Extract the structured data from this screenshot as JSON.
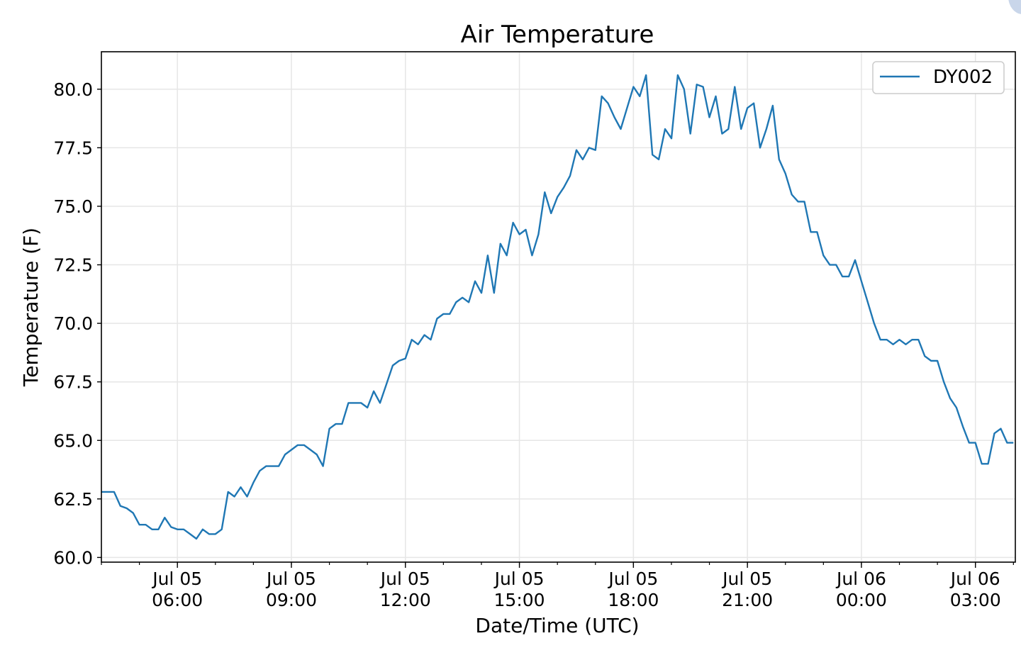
{
  "chart_data": {
    "type": "line",
    "title": "Air Temperature",
    "xlabel": "Date/Time (UTC)",
    "ylabel": "Temperature (F)",
    "x_start_hour": 4,
    "x_step_minutes": 10,
    "xlim_hours": [
      4,
      28.05
    ],
    "ylim": [
      59.8,
      81.6
    ],
    "grid": true,
    "legend_position": "top-right",
    "series": [
      {
        "name": "DY002",
        "color": "#1f77b4",
        "values": [
          62.8,
          62.8,
          62.8,
          62.2,
          62.1,
          61.9,
          61.4,
          61.4,
          61.2,
          61.2,
          61.7,
          61.3,
          61.2,
          61.2,
          61.0,
          60.8,
          61.2,
          61.0,
          61.0,
          61.2,
          62.8,
          62.6,
          63.0,
          62.6,
          63.2,
          63.7,
          63.9,
          63.9,
          63.9,
          64.4,
          64.6,
          64.8,
          64.8,
          64.6,
          64.4,
          63.9,
          65.5,
          65.7,
          65.7,
          66.6,
          66.6,
          66.6,
          66.4,
          67.1,
          66.6,
          67.4,
          68.2,
          68.4,
          68.5,
          69.3,
          69.1,
          69.5,
          69.3,
          70.2,
          70.4,
          70.4,
          70.9,
          71.1,
          70.9,
          71.8,
          71.3,
          72.9,
          71.3,
          73.4,
          72.9,
          74.3,
          73.8,
          74.0,
          72.9,
          73.8,
          75.6,
          74.7,
          75.4,
          75.8,
          76.3,
          77.4,
          77.0,
          77.5,
          77.4,
          79.7,
          79.4,
          78.8,
          78.3,
          79.2,
          80.1,
          79.7,
          80.6,
          77.2,
          77.0,
          78.3,
          77.9,
          80.6,
          80.0,
          78.1,
          80.2,
          80.1,
          78.8,
          79.7,
          78.1,
          78.3,
          80.1,
          78.3,
          79.2,
          79.4,
          77.5,
          78.3,
          79.3,
          77.0,
          76.4,
          75.5,
          75.2,
          75.2,
          73.9,
          73.9,
          72.9,
          72.5,
          72.5,
          72.0,
          72.0,
          72.7,
          71.8,
          70.9,
          70.0,
          69.3,
          69.3,
          69.1,
          69.3,
          69.1,
          69.3,
          69.3,
          68.6,
          68.4,
          68.4,
          67.5,
          66.8,
          66.4,
          65.6,
          64.9,
          64.9,
          64.0,
          64.0,
          65.3,
          65.5,
          64.9,
          64.9
        ]
      }
    ],
    "y_ticks": [
      {
        "value": 60.0,
        "label": "60.0"
      },
      {
        "value": 62.5,
        "label": "62.5"
      },
      {
        "value": 65.0,
        "label": "65.0"
      },
      {
        "value": 67.5,
        "label": "67.5"
      },
      {
        "value": 70.0,
        "label": "70.0"
      },
      {
        "value": 72.5,
        "label": "72.5"
      },
      {
        "value": 75.0,
        "label": "75.0"
      },
      {
        "value": 77.5,
        "label": "77.5"
      },
      {
        "value": 80.0,
        "label": "80.0"
      }
    ],
    "x_ticks": [
      {
        "hour": 6,
        "date": "Jul 05",
        "time": "06:00"
      },
      {
        "hour": 9,
        "date": "Jul 05",
        "time": "09:00"
      },
      {
        "hour": 12,
        "date": "Jul 05",
        "time": "12:00"
      },
      {
        "hour": 15,
        "date": "Jul 05",
        "time": "15:00"
      },
      {
        "hour": 18,
        "date": "Jul 05",
        "time": "18:00"
      },
      {
        "hour": 21,
        "date": "Jul 05",
        "time": "21:00"
      },
      {
        "hour": 24,
        "date": "Jul 06",
        "time": "00:00"
      },
      {
        "hour": 27,
        "date": "Jul 06",
        "time": "03:00"
      }
    ],
    "x_minor_tick_every_hours": 1
  }
}
